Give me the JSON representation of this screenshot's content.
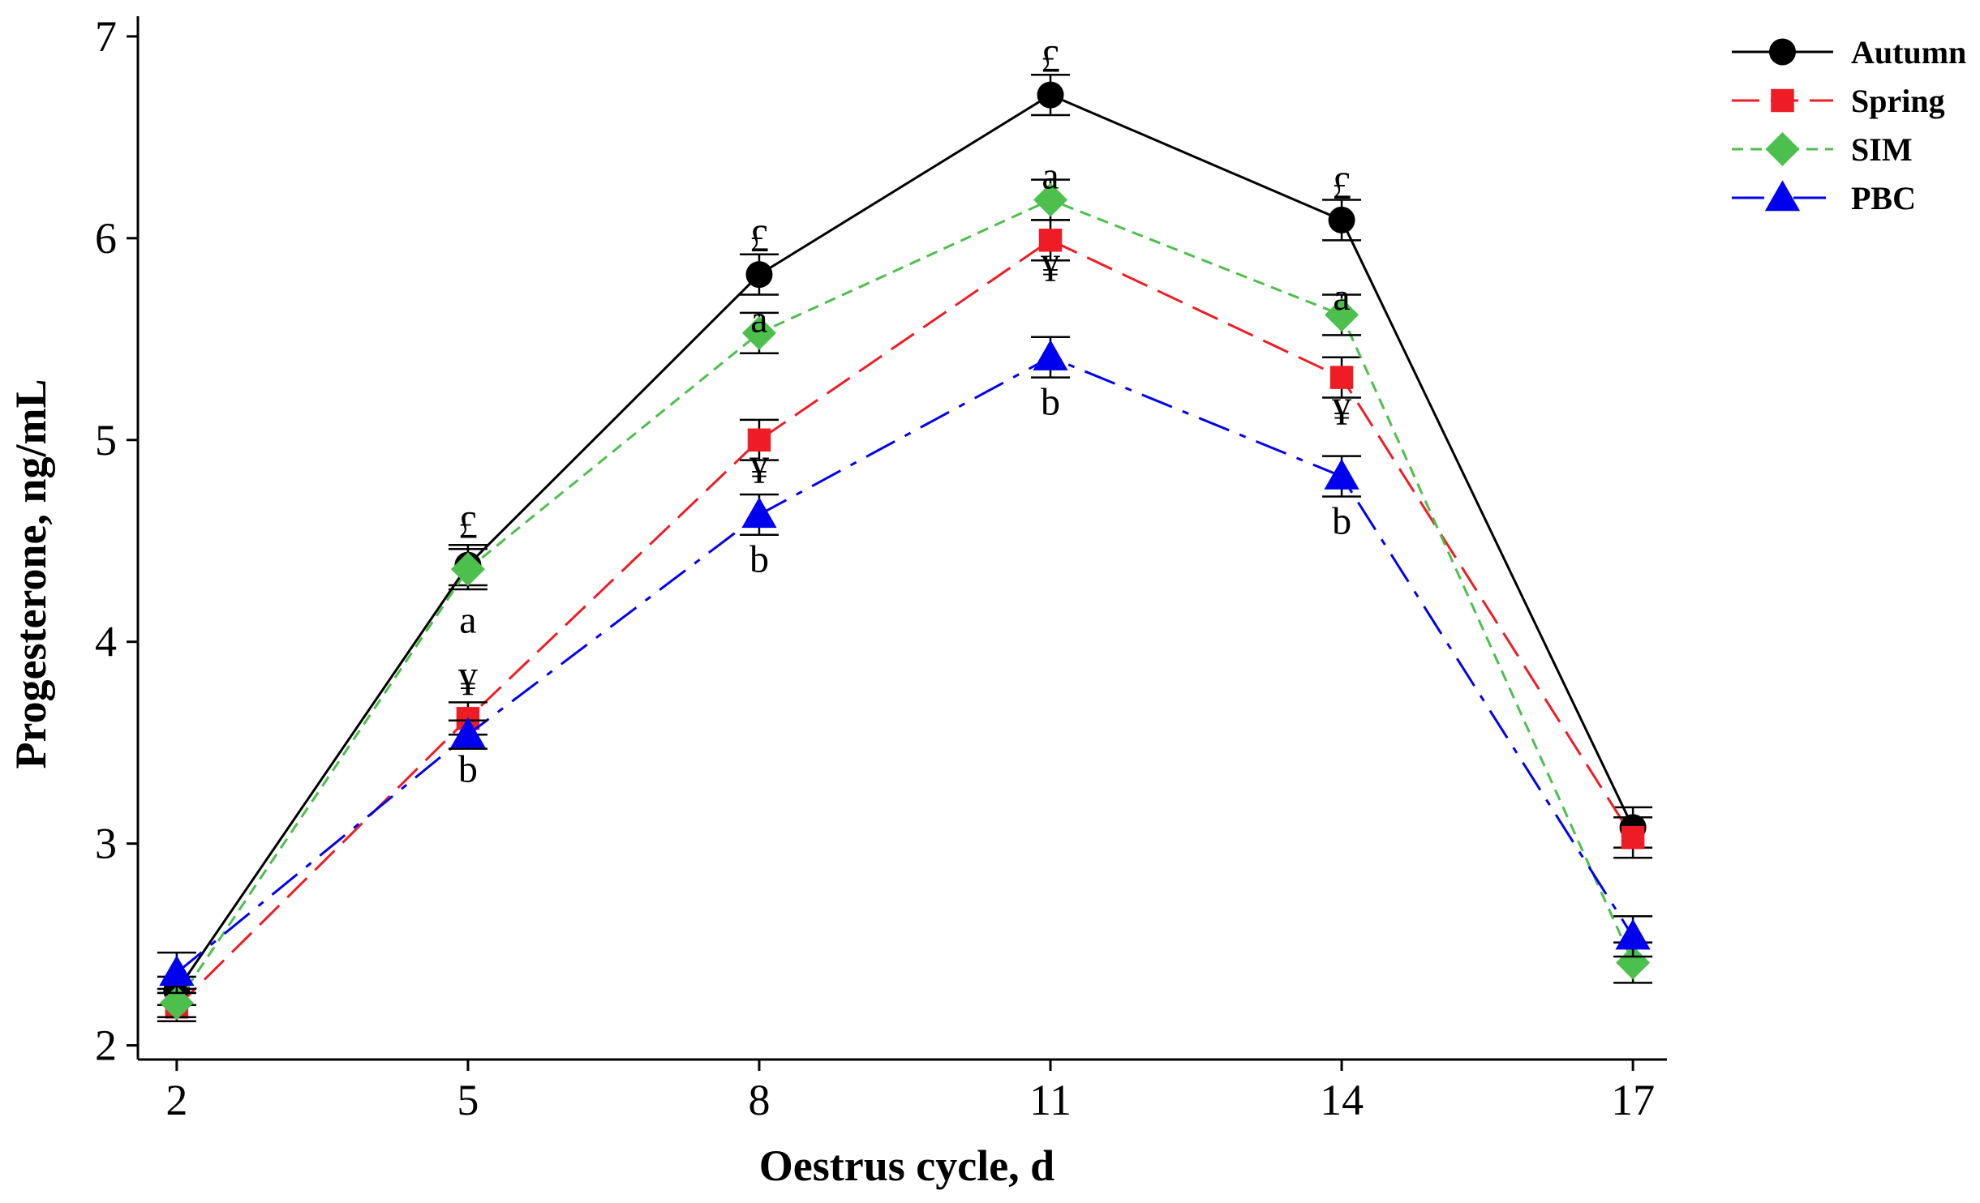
{
  "chart_data": {
    "type": "line",
    "title": "",
    "xlabel": "Oestrus cycle, d",
    "ylabel": "Progesterone, ng/mL",
    "x": [
      2,
      5,
      8,
      11,
      14,
      17
    ],
    "x_tick_labels": [
      "2",
      "5",
      "8",
      "11",
      "14",
      "17"
    ],
    "xlim": [
      1.6,
      17.35
    ],
    "ylim": [
      1.93,
      7.1
    ],
    "y_ticks": [
      2,
      3,
      4,
      5,
      6,
      7
    ],
    "y_tick_labels": [
      "2",
      "3",
      "4",
      "5",
      "6",
      "7"
    ],
    "grid": false,
    "legend_position": "top-right",
    "series": [
      {
        "name": "Autumn",
        "color": "#000000",
        "marker": "circle",
        "dash": "solid",
        "values": [
          2.27,
          4.38,
          5.82,
          6.71,
          6.09,
          3.08
        ],
        "err": [
          0.07,
          0.1,
          0.1,
          0.1,
          0.1,
          0.1
        ]
      },
      {
        "name": "Spring",
        "color": "#ee1c25",
        "marker": "square",
        "dash": "long-dash",
        "values": [
          2.19,
          3.62,
          5.0,
          5.99,
          5.31,
          3.03
        ],
        "err": [
          0.07,
          0.08,
          0.1,
          0.1,
          0.1,
          0.1
        ]
      },
      {
        "name": "SIM",
        "color": "#4dbf4d",
        "marker": "diamond",
        "dash": "short-dash",
        "values": [
          2.21,
          4.36,
          5.53,
          6.19,
          5.62,
          2.41
        ],
        "err": [
          0.07,
          0.1,
          0.1,
          0.1,
          0.1,
          0.1
        ]
      },
      {
        "name": "PBC",
        "color": "#0000ee",
        "marker": "triangle",
        "dash": "dash-dot",
        "values": [
          2.36,
          3.54,
          4.63,
          5.41,
          4.82,
          2.54
        ],
        "err": [
          0.1,
          0.07,
          0.1,
          0.1,
          0.1,
          0.1
        ]
      }
    ],
    "annotations": [
      {
        "x": 5,
        "y": 4.58,
        "text": "£"
      },
      {
        "x": 5,
        "y": 4.11,
        "text": "a"
      },
      {
        "x": 5,
        "y": 3.8,
        "text": "¥"
      },
      {
        "x": 5,
        "y": 3.37,
        "text": "b"
      },
      {
        "x": 8,
        "y": 6.0,
        "text": "£"
      },
      {
        "x": 8,
        "y": 5.6,
        "text": "a"
      },
      {
        "x": 8,
        "y": 4.85,
        "text": "¥"
      },
      {
        "x": 8,
        "y": 4.41,
        "text": "b"
      },
      {
        "x": 11,
        "y": 6.89,
        "text": "£"
      },
      {
        "x": 11,
        "y": 6.31,
        "text": "a"
      },
      {
        "x": 11,
        "y": 5.85,
        "text": "¥"
      },
      {
        "x": 11,
        "y": 5.19,
        "text": "b"
      },
      {
        "x": 14,
        "y": 6.26,
        "text": "£"
      },
      {
        "x": 14,
        "y": 5.71,
        "text": "a"
      },
      {
        "x": 14,
        "y": 5.14,
        "text": "¥"
      },
      {
        "x": 14,
        "y": 4.6,
        "text": "b"
      }
    ]
  }
}
